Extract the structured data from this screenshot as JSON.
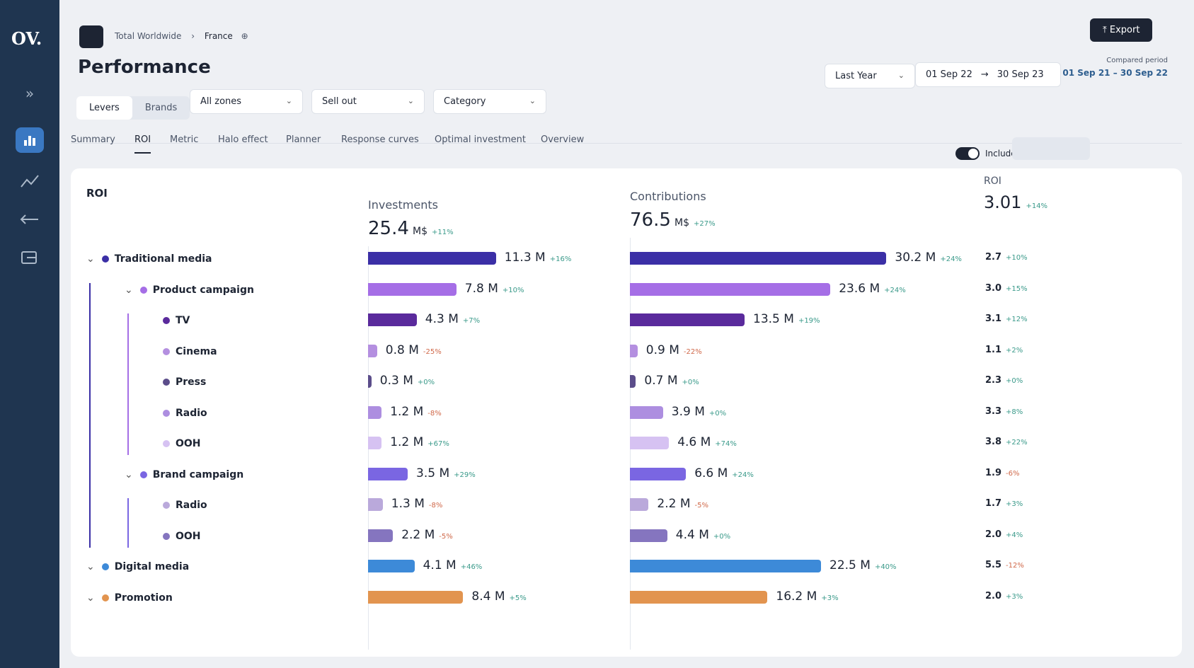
{
  "sidebar": {
    "logo": "OV."
  },
  "header": {
    "breadcrumb": [
      "Total Worldwide",
      "France"
    ],
    "title": "Performance",
    "export": "Export",
    "period": "Last Year",
    "start": "01 Sep 22",
    "end": "30 Sep 23",
    "compared_label": "Compared period",
    "compared": "01 Sep 21 – 30 Sep 22"
  },
  "filters": {
    "toggle": [
      "Levers",
      "Brands"
    ],
    "dropdowns": [
      "All zones",
      "Sell out",
      "Category"
    ]
  },
  "tabs": [
    "Summary",
    "ROI",
    "Metric",
    "Halo effect",
    "Planner",
    "Response curves",
    "Optimal investment",
    "Overview"
  ],
  "active_tab": 1,
  "card": {
    "title": "ROI",
    "remanance": "Include Remanance",
    "investments": {
      "title": "Investments",
      "total": 25.4,
      "unit": "M$",
      "change": "+11%"
    },
    "contributions": {
      "title": "Contributions",
      "total": 76.5,
      "unit": "M$",
      "change": "+27%"
    },
    "roi": {
      "title": "ROI",
      "total": 3.01,
      "change": "+14%"
    }
  },
  "rows": [
    {
      "name": "Traditional media",
      "level": 0,
      "color": "#3b2fa6",
      "investment": 11.3,
      "investment_label": "11.3 M",
      "investment_change": "+16%",
      "contribution": 30.2,
      "contribution_label": "30.2 M",
      "contribution_change": "+24%",
      "roi": 2.7,
      "roi_label": "2.7",
      "roi_change": "+10%"
    },
    {
      "name": "Product campaign",
      "level": 1,
      "color": "#a56ee6",
      "investment": 7.8,
      "investment_label": "7.8 M",
      "investment_change": "+10%",
      "contribution": 23.6,
      "contribution_label": "23.6 M",
      "contribution_change": "+24%",
      "roi": 3,
      "roi_label": "3.0",
      "roi_change": "+15%"
    },
    {
      "name": "TV",
      "level": 2,
      "color": "#5a2a9c",
      "investment": 4.3,
      "investment_label": "4.3 M",
      "investment_change": "+7%",
      "contribution": 13.5,
      "contribution_label": "13.5 M",
      "contribution_change": "+19%",
      "roi": 3.1,
      "roi_label": "3.1",
      "roi_change": "+12%"
    },
    {
      "name": "Cinema",
      "level": 2,
      "color": "#b48fe0",
      "investment": 0.8,
      "investment_label": "0.8 M",
      "investment_change": "-25%",
      "contribution": 0.9,
      "contribution_label": "0.9 M",
      "contribution_change": "-22%",
      "roi": 1.1,
      "roi_label": "1.1",
      "roi_change": "+2%"
    },
    {
      "name": "Press",
      "level": 2,
      "color": "#5b4d8a",
      "investment": 0.3,
      "investment_label": "0.3 M",
      "investment_change": "+0%",
      "contribution": 0.7,
      "contribution_label": "0.7 M",
      "contribution_change": "+0%",
      "roi": 2.3,
      "roi_label": "2.3",
      "roi_change": "+0%"
    },
    {
      "name": "Radio",
      "level": 2,
      "color": "#ad8ee0",
      "investment": 1.2,
      "investment_label": "1.2 M",
      "investment_change": "-8%",
      "contribution": 3.9,
      "contribution_label": "3.9 M",
      "contribution_change": "+0%",
      "roi": 3.3,
      "roi_label": "3.3",
      "roi_change": "+8%"
    },
    {
      "name": "OOH",
      "level": 2,
      "color": "#d6c2f2",
      "investment": 1.2,
      "investment_label": "1.2 M",
      "investment_change": "+67%",
      "contribution": 4.6,
      "contribution_label": "4.6 M",
      "contribution_change": "+74%",
      "roi": 3.8,
      "roi_label": "3.8",
      "roi_change": "+22%"
    },
    {
      "name": "Brand campaign",
      "level": 1,
      "color": "#7a66e2",
      "investment": 3.5,
      "investment_label": "3.5 M",
      "investment_change": "+29%",
      "contribution": 6.6,
      "contribution_label": "6.6 M",
      "contribution_change": "+24%",
      "roi": 1.9,
      "roi_label": "1.9",
      "roi_change": "-6%"
    },
    {
      "name": "Radio",
      "level": 2,
      "color": "#baa9db",
      "investment": 1.3,
      "investment_label": "1.3 M",
      "investment_change": "-8%",
      "contribution": 2.2,
      "contribution_label": "2.2 M",
      "contribution_change": "-5%",
      "roi": 1.7,
      "roi_label": "1.7",
      "roi_change": "+3%"
    },
    {
      "name": "OOH",
      "level": 2,
      "color": "#8575bf",
      "investment": 2.2,
      "investment_label": "2.2 M",
      "investment_change": "-5%",
      "contribution": 4.4,
      "contribution_label": "4.4 M",
      "contribution_change": "+0%",
      "roi": 2,
      "roi_label": "2.0",
      "roi_change": "+4%"
    },
    {
      "name": "Digital media",
      "level": 0,
      "color": "#3d8ad8",
      "investment": 4.1,
      "investment_label": "4.1 M",
      "investment_change": "+46%",
      "contribution": 22.5,
      "contribution_label": "22.5 M",
      "contribution_change": "+40%",
      "roi": 5.5,
      "roi_label": "5.5",
      "roi_change": "-12%"
    },
    {
      "name": "Promotion",
      "level": 0,
      "color": "#e2944f",
      "investment": 8.4,
      "investment_label": "8.4 M",
      "investment_change": "+5%",
      "contribution": 16.2,
      "contribution_label": "16.2 M",
      "contribution_change": "+3%",
      "roi": 2,
      "roi_label": "2.0",
      "roi_change": "+3%"
    }
  ]
}
